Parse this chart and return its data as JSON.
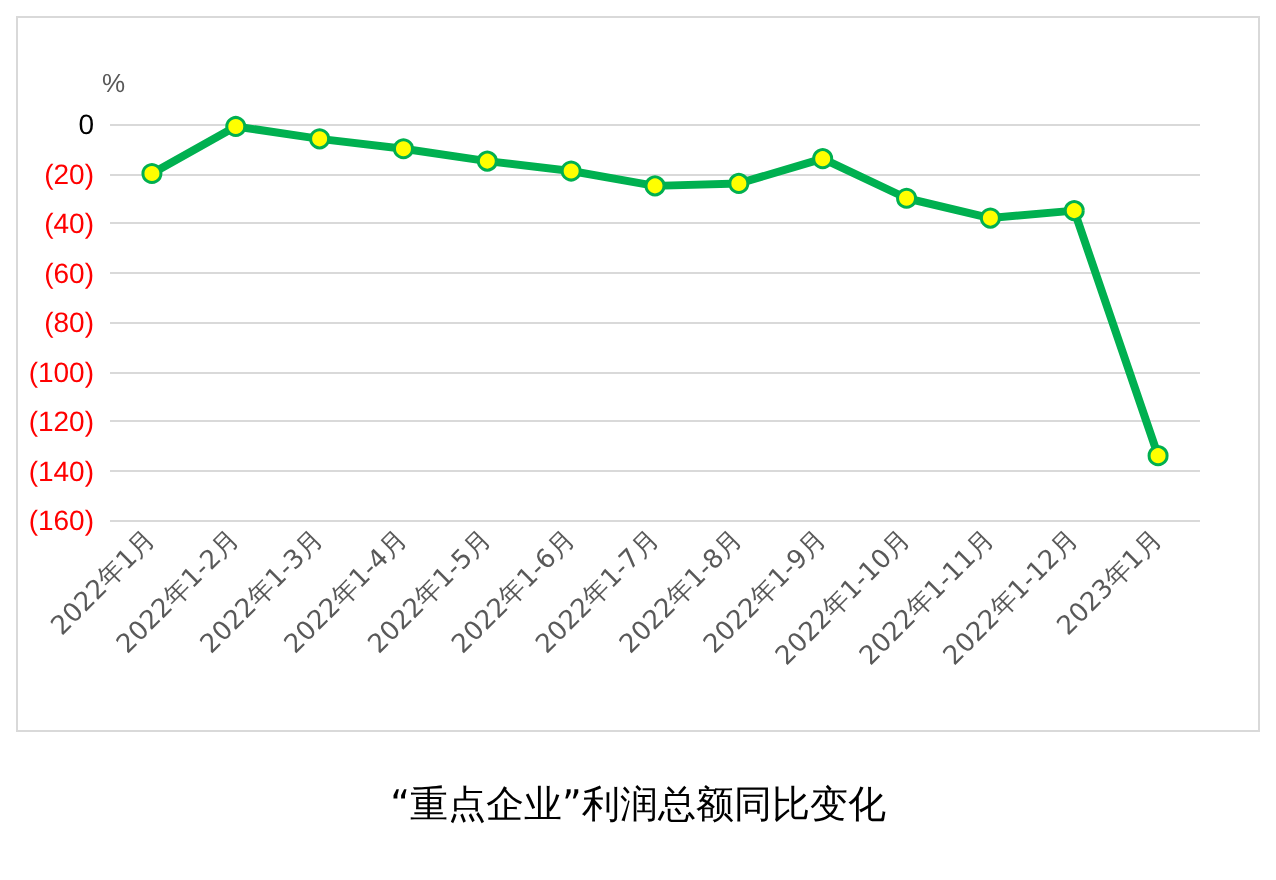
{
  "chart_data": {
    "type": "line",
    "title": "“重点企业”利润总额同比变化",
    "ylabel": "%",
    "categories": [
      "2022年1月",
      "2022年1-2月",
      "2022年1-3月",
      "2022年1-4月",
      "2022年1-5月",
      "2022年1-6月",
      "2022年1-7月",
      "2022年1-8月",
      "2022年1-9月",
      "2022年1-10月",
      "2022年1-11月",
      "2022年1-12月",
      "2023年1月"
    ],
    "series": [
      {
        "color": "#00b050",
        "values": [
          -20,
          -1,
          -6,
          -10,
          -15,
          -19,
          -25,
          -24,
          -14,
          -30,
          -38,
          -35,
          -134
        ]
      }
    ],
    "ylim": [
      -160,
      0
    ],
    "yticks": [
      {
        "value": -160,
        "label": "(160)"
      },
      {
        "value": -140,
        "label": "(140)"
      },
      {
        "value": -120,
        "label": "(120)"
      },
      {
        "value": -100,
        "label": "(100)"
      },
      {
        "value": -80,
        "label": "(80)"
      },
      {
        "value": -60,
        "label": "(60)"
      },
      {
        "value": -40,
        "label": "(40)"
      },
      {
        "value": -20,
        "label": "(20)"
      },
      0
    ],
    "grid": "y",
    "marker": "circle",
    "line_style": "solid"
  }
}
